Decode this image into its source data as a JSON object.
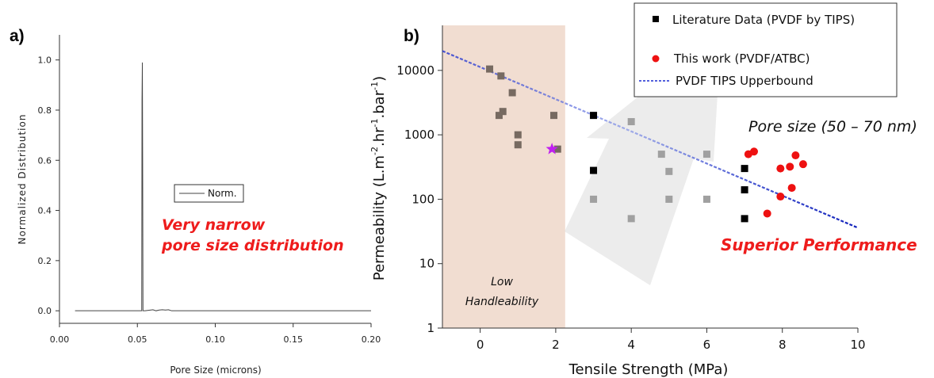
{
  "chart_data": [
    {
      "type": "line",
      "panel_label": "a)",
      "title": "",
      "xlabel": "Pore Size (microns)",
      "ylabel": "Normalized Distribution",
      "xlim": [
        0.0,
        0.2
      ],
      "ylim": [
        -0.05,
        1.1
      ],
      "x_ticks": [
        0.0,
        0.05,
        0.1,
        0.15,
        0.2
      ],
      "x_tick_labels": [
        "0.00",
        "0.05",
        "0.10",
        "0.15",
        "0.20"
      ],
      "y_ticks": [
        0.0,
        0.2,
        0.4,
        0.6,
        0.8,
        1.0
      ],
      "y_tick_labels": [
        "0.0",
        "0.2",
        "0.4",
        "0.6",
        "0.8",
        "1.0"
      ],
      "grid": false,
      "legend": {
        "position": "center",
        "entries": [
          "Norm."
        ]
      },
      "series": [
        {
          "name": "Norm.",
          "x": [
            0.01,
            0.0528,
            0.053,
            0.0532,
            0.0534,
            0.0536,
            0.0538,
            0.054,
            0.0542,
            0.055,
            0.06,
            0.062,
            0.064,
            0.066,
            0.068,
            0.07,
            0.072,
            0.2
          ],
          "y": [
            0.0,
            0.0,
            0.84,
            0.99,
            0.57,
            0.0,
            0.0,
            0.0,
            0.0,
            0.0,
            0.004,
            0.0,
            0.003,
            0.004,
            0.003,
            0.004,
            0.0,
            0.0
          ]
        }
      ],
      "annotations": [
        {
          "text": "Very narrow",
          "color": "#ee1c1c"
        },
        {
          "text": "pore size distribution",
          "color": "#ee1c1c"
        }
      ]
    },
    {
      "type": "scatter",
      "panel_label": "b)",
      "title": "",
      "xlabel": "Tensile Strength (MPa)",
      "ylabel_parts": [
        "Permeability (L.m",
        "-2",
        ".hr",
        "-1",
        ".bar",
        "-1",
        ")"
      ],
      "xlim": [
        -1,
        10
      ],
      "ylim": [
        1,
        50000
      ],
      "y_scale": "log",
      "x_ticks": [
        0,
        2,
        4,
        6,
        8,
        10
      ],
      "x_tick_labels": [
        "0",
        "2",
        "4",
        "6",
        "8",
        "10"
      ],
      "y_ticks": [
        1,
        10,
        100,
        1000,
        10000
      ],
      "y_tick_labels": [
        "1",
        "10",
        "100",
        "1000",
        "10000"
      ],
      "grid": false,
      "legend": {
        "position": "top-right",
        "entries": [
          "Literature Data (PVDF by TIPS)",
          "This work (PVDF/ATBC)",
          "PVDF TIPS Upperbound"
        ]
      },
      "low_handleability_region": {
        "x_range": [
          -1,
          2.25
        ],
        "color": "#f1ddd1",
        "label_lines": [
          "Low",
          "Handleability"
        ]
      },
      "series": [
        {
          "name": "Literature Data (PVDF by TIPS)",
          "color": "#000000",
          "points": [
            [
              3,
              2000
            ],
            [
              3,
              280
            ],
            [
              7,
              300
            ],
            [
              7,
              140
            ],
            [
              7,
              50
            ]
          ]
        },
        {
          "name": "Literature Data (PVDF by TIPS) — in low handleability region",
          "color": "#776a61",
          "points": [
            [
              0.25,
              10500
            ],
            [
              0.55,
              8200
            ],
            [
              0.6,
              2300
            ],
            [
              0.5,
              2000
            ],
            [
              0.85,
              4500
            ],
            [
              1.0,
              1000
            ],
            [
              1.0,
              700
            ],
            [
              1.95,
              2000
            ],
            [
              2.05,
              600
            ]
          ]
        },
        {
          "name": "Literature Data (PVDF by TIPS) — under arrow",
          "color": "#a0a0a0",
          "points": [
            [
              3,
              100
            ],
            [
              4,
              1600
            ],
            [
              4,
              50
            ],
            [
              4.8,
              500
            ],
            [
              5,
              270
            ],
            [
              5,
              100
            ],
            [
              6,
              500
            ],
            [
              6,
              100
            ]
          ]
        },
        {
          "name": "This work (PVDF/ATBC)",
          "color": "#ee1111",
          "points": [
            [
              7.1,
              500
            ],
            [
              7.25,
              550
            ],
            [
              7.6,
              60
            ],
            [
              7.95,
              300
            ],
            [
              7.95,
              110
            ],
            [
              8.2,
              320
            ],
            [
              8.25,
              150
            ],
            [
              8.35,
              480
            ],
            [
              8.55,
              350
            ]
          ]
        },
        {
          "name": "star",
          "color": "#c020f0",
          "points": [
            [
              1.9,
              600
            ]
          ]
        }
      ],
      "upperbound_line": {
        "name": "PVDF TIPS Upperbound",
        "color": "#1a2bd0",
        "x": [
          -1,
          10
        ],
        "y": [
          20000,
          36
        ]
      },
      "annotations": [
        {
          "text": "Pore size (50 – 70 nm)",
          "color": "#111111"
        },
        {
          "text": "Superior Performance",
          "color": "#ee1c1c"
        }
      ]
    }
  ]
}
